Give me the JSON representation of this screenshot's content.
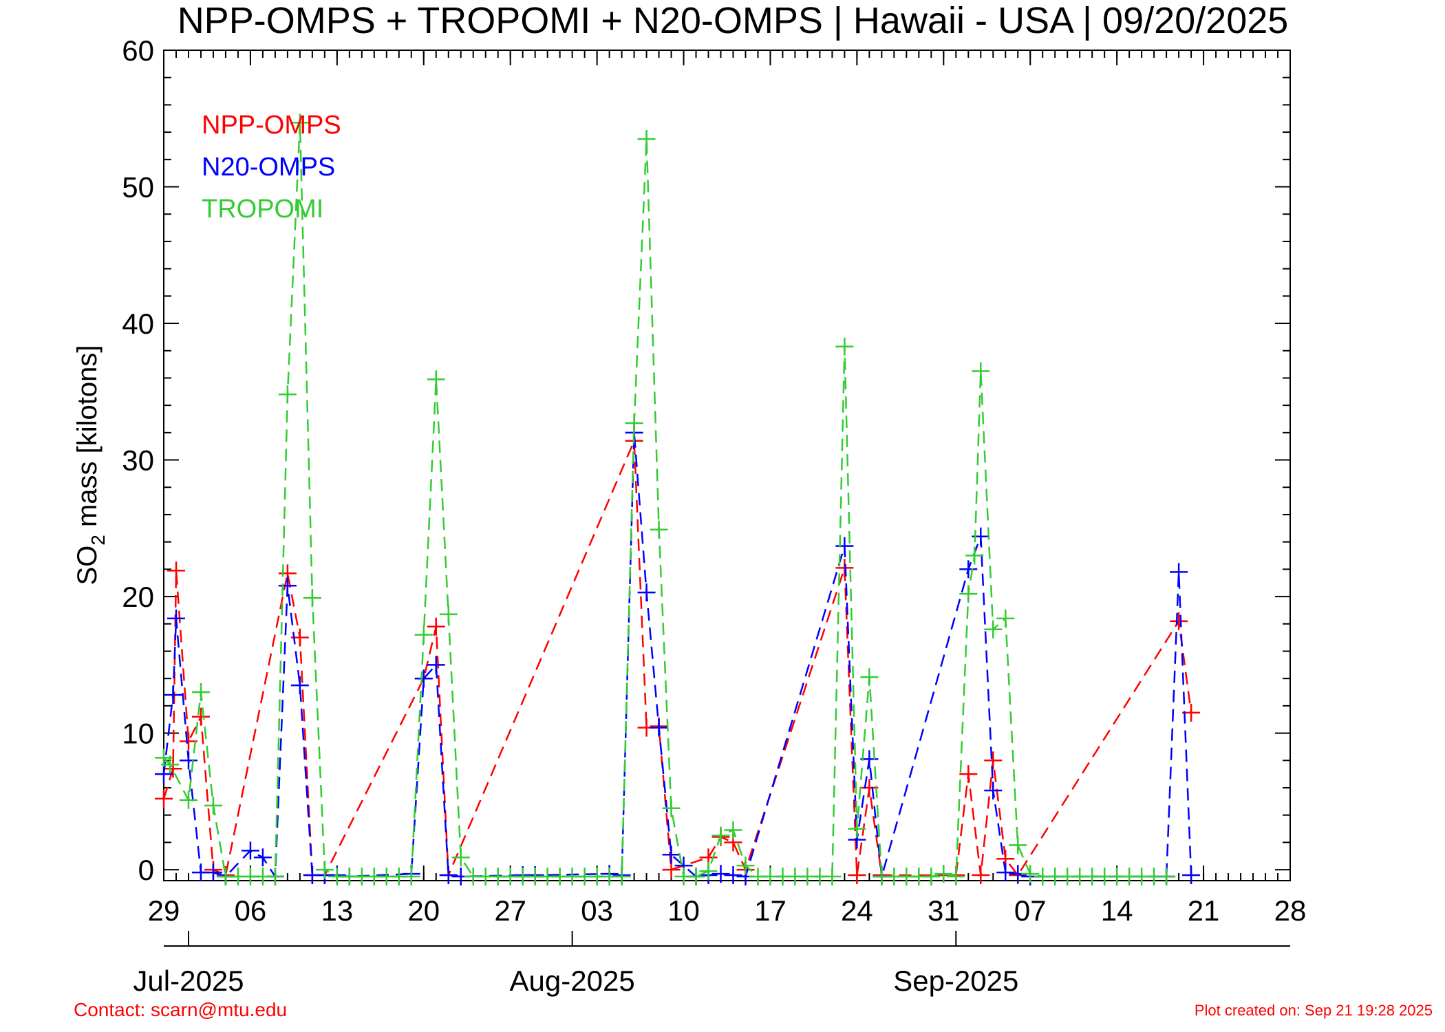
{
  "footer": {
    "contact": "Contact: scarn@mtu.edu",
    "created": "Plot created on: Sep 21 19:28 2025"
  },
  "chart_data": {
    "type": "line",
    "title": "NPP-OMPS + TROPOMI + N20-OMPS | Hawaii - USA | 09/20/2025",
    "ylabel_main": "SO",
    "ylabel_sub": "2",
    "ylabel_rest": " mass [kilotons]",
    "ylim": [
      -0.8,
      60
    ],
    "yticks": [
      0,
      10,
      20,
      30,
      40,
      50,
      60
    ],
    "xlim": [
      "2025-06-29",
      "2025-09-28"
    ],
    "xticks": [
      {
        "date": "2025-06-29",
        "label": "29"
      },
      {
        "date": "2025-07-06",
        "label": "06"
      },
      {
        "date": "2025-07-13",
        "label": "13"
      },
      {
        "date": "2025-07-20",
        "label": "20"
      },
      {
        "date": "2025-07-27",
        "label": "27"
      },
      {
        "date": "2025-08-03",
        "label": "03"
      },
      {
        "date": "2025-08-10",
        "label": "10"
      },
      {
        "date": "2025-08-17",
        "label": "17"
      },
      {
        "date": "2025-08-24",
        "label": "24"
      },
      {
        "date": "2025-08-31",
        "label": "31"
      },
      {
        "date": "2025-09-07",
        "label": "07"
      },
      {
        "date": "2025-09-14",
        "label": "14"
      },
      {
        "date": "2025-09-21",
        "label": "21"
      },
      {
        "date": "2025-09-28",
        "label": "28"
      }
    ],
    "month_ticks": [
      {
        "date": "2025-07-01",
        "label": "Jul-2025"
      },
      {
        "date": "2025-08-01",
        "label": "Aug-2025"
      },
      {
        "date": "2025-09-01",
        "label": "Sep-2025"
      }
    ],
    "legend_placement": "top-left",
    "series": [
      {
        "name": "NPP-OMPS",
        "color": "#ff0000",
        "points": [
          [
            "2025-06-29",
            5.2
          ],
          [
            "2025-06-29T18:00",
            7.4
          ],
          [
            "2025-06-30",
            21.9
          ],
          [
            "2025-07-01",
            9.4
          ],
          [
            "2025-07-02",
            11.2
          ],
          [
            "2025-07-03",
            0
          ],
          [
            "2025-07-04",
            -0.4
          ],
          [
            "2025-07-09",
            21.7
          ],
          [
            "2025-07-10",
            17.0
          ],
          [
            "2025-07-11",
            -0.4
          ],
          [
            "2025-07-12",
            -0.4
          ],
          [
            "2025-07-20",
            14.0
          ],
          [
            "2025-07-21",
            17.8
          ],
          [
            "2025-07-22",
            -0.4
          ],
          [
            "2025-08-06",
            31.4
          ],
          [
            "2025-08-07",
            10.4
          ],
          [
            "2025-08-08",
            10.5
          ],
          [
            "2025-08-09",
            0
          ],
          [
            "2025-08-12",
            0.9
          ],
          [
            "2025-08-13",
            2.4
          ],
          [
            "2025-08-14",
            2.0
          ],
          [
            "2025-08-15",
            0
          ],
          [
            "2025-08-23",
            22.1
          ],
          [
            "2025-08-24",
            -0.4
          ],
          [
            "2025-08-25",
            6.0
          ],
          [
            "2025-08-26",
            -0.4
          ],
          [
            "2025-09-01",
            -0.4
          ],
          [
            "2025-09-02",
            7.0
          ],
          [
            "2025-09-03",
            -0.4
          ],
          [
            "2025-09-04",
            8.0
          ],
          [
            "2025-09-05",
            0.8
          ],
          [
            "2025-09-06",
            -0.4
          ],
          [
            "2025-09-19",
            18.2
          ],
          [
            "2025-09-20",
            11.5
          ]
        ]
      },
      {
        "name": "N20-OMPS",
        "color": "#0000ff",
        "points": [
          [
            "2025-06-29",
            7.0
          ],
          [
            "2025-06-29T18:00",
            12.8
          ],
          [
            "2025-06-30",
            18.4
          ],
          [
            "2025-07-01",
            8.0
          ],
          [
            "2025-07-02",
            -0.2
          ],
          [
            "2025-07-03",
            -0.2
          ],
          [
            "2025-07-04",
            -0.5
          ],
          [
            "2025-07-06",
            1.4
          ],
          [
            "2025-07-07",
            0.9
          ],
          [
            "2025-07-08",
            -0.5
          ],
          [
            "2025-07-09",
            20.8
          ],
          [
            "2025-07-10",
            13.5
          ],
          [
            "2025-07-11",
            -0.4
          ],
          [
            "2025-07-12",
            -0.4
          ],
          [
            "2025-07-13",
            -0.4
          ],
          [
            "2025-07-14",
            -0.5
          ],
          [
            "2025-07-19",
            -0.3
          ],
          [
            "2025-07-20",
            14.0
          ],
          [
            "2025-07-21",
            15.0
          ],
          [
            "2025-07-22",
            -0.4
          ],
          [
            "2025-07-23",
            -0.5
          ],
          [
            "2025-07-28",
            -0.4
          ],
          [
            "2025-07-29",
            -0.4
          ],
          [
            "2025-08-04",
            -0.3
          ],
          [
            "2025-08-05",
            -0.4
          ],
          [
            "2025-08-06",
            32.0
          ],
          [
            "2025-08-07",
            20.3
          ],
          [
            "2025-08-08",
            10.4
          ],
          [
            "2025-08-09",
            1.1
          ],
          [
            "2025-08-10",
            0.3
          ],
          [
            "2025-08-11",
            -0.5
          ],
          [
            "2025-08-12",
            -0.4
          ],
          [
            "2025-08-13",
            -0.3
          ],
          [
            "2025-08-14",
            -0.4
          ],
          [
            "2025-08-15",
            -0.5
          ],
          [
            "2025-08-23",
            23.7
          ],
          [
            "2025-08-24",
            2.2
          ],
          [
            "2025-08-25",
            8.1
          ],
          [
            "2025-08-26",
            -0.5
          ],
          [
            "2025-09-02",
            22.0
          ],
          [
            "2025-09-03",
            24.4
          ],
          [
            "2025-09-04",
            5.8
          ],
          [
            "2025-09-05",
            -0.2
          ],
          [
            "2025-09-06",
            -0.3
          ],
          [
            "2025-09-07",
            -0.5
          ],
          [
            "2025-09-18",
            -0.5
          ],
          [
            "2025-09-19",
            21.8
          ],
          [
            "2025-09-20",
            -0.4
          ]
        ]
      },
      {
        "name": "TROPOMI",
        "color": "#33cc33",
        "points": [
          [
            "2025-06-29",
            8.2
          ],
          [
            "2025-06-29T12:00",
            7.7
          ],
          [
            "2025-07-01",
            5.1
          ],
          [
            "2025-07-02",
            13.0
          ],
          [
            "2025-07-03",
            4.7
          ],
          [
            "2025-07-04",
            -0.5
          ],
          [
            "2025-07-05",
            -0.5
          ],
          [
            "2025-07-06",
            -0.5
          ],
          [
            "2025-07-07",
            -0.5
          ],
          [
            "2025-07-08",
            -0.5
          ],
          [
            "2025-07-09",
            34.8
          ],
          [
            "2025-07-10",
            54.7
          ],
          [
            "2025-07-11",
            19.9
          ],
          [
            "2025-07-12",
            0
          ],
          [
            "2025-07-13",
            -0.5
          ],
          [
            "2025-07-14",
            -0.5
          ],
          [
            "2025-07-15",
            -0.5
          ],
          [
            "2025-07-16",
            -0.5
          ],
          [
            "2025-07-17",
            -0.5
          ],
          [
            "2025-07-18",
            -0.5
          ],
          [
            "2025-07-19",
            -0.5
          ],
          [
            "2025-07-20",
            17.2
          ],
          [
            "2025-07-21",
            35.9
          ],
          [
            "2025-07-22",
            18.7
          ],
          [
            "2025-07-23",
            0.9
          ],
          [
            "2025-07-24",
            -0.5
          ],
          [
            "2025-07-25",
            -0.5
          ],
          [
            "2025-07-26",
            -0.5
          ],
          [
            "2025-07-27",
            -0.5
          ],
          [
            "2025-07-28",
            -0.5
          ],
          [
            "2025-07-29",
            -0.5
          ],
          [
            "2025-07-30",
            -0.5
          ],
          [
            "2025-07-31",
            -0.5
          ],
          [
            "2025-08-01",
            -0.5
          ],
          [
            "2025-08-02",
            -0.5
          ],
          [
            "2025-08-03",
            -0.5
          ],
          [
            "2025-08-04",
            -0.5
          ],
          [
            "2025-08-05",
            -0.5
          ],
          [
            "2025-08-06",
            32.7
          ],
          [
            "2025-08-07",
            53.5
          ],
          [
            "2025-08-08",
            24.9
          ],
          [
            "2025-08-09",
            4.5
          ],
          [
            "2025-08-10",
            -0.5
          ],
          [
            "2025-08-11",
            -0.5
          ],
          [
            "2025-08-12",
            -0.1
          ],
          [
            "2025-08-13",
            2.5
          ],
          [
            "2025-08-14",
            2.9
          ],
          [
            "2025-08-15",
            0.3
          ],
          [
            "2025-08-16",
            -0.5
          ],
          [
            "2025-08-17",
            -0.5
          ],
          [
            "2025-08-18",
            -0.5
          ],
          [
            "2025-08-19",
            -0.5
          ],
          [
            "2025-08-20",
            -0.5
          ],
          [
            "2025-08-21",
            -0.5
          ],
          [
            "2025-08-22",
            -0.5
          ],
          [
            "2025-08-23",
            38.3
          ],
          [
            "2025-08-24",
            3.0
          ],
          [
            "2025-08-25",
            14.1
          ],
          [
            "2025-08-26",
            -0.5
          ],
          [
            "2025-08-27",
            -0.5
          ],
          [
            "2025-08-28",
            -0.5
          ],
          [
            "2025-08-29",
            -0.5
          ],
          [
            "2025-08-30",
            -0.5
          ],
          [
            "2025-08-31",
            -0.3
          ],
          [
            "2025-09-01",
            -0.5
          ],
          [
            "2025-09-02",
            20.2
          ],
          [
            "2025-09-02T12:00",
            23.0
          ],
          [
            "2025-09-03",
            36.5
          ],
          [
            "2025-09-04",
            17.6
          ],
          [
            "2025-09-05",
            18.4
          ],
          [
            "2025-09-06",
            1.8
          ],
          [
            "2025-09-07",
            -0.3
          ],
          [
            "2025-09-08",
            -0.5
          ],
          [
            "2025-09-09",
            -0.5
          ],
          [
            "2025-09-10",
            -0.5
          ],
          [
            "2025-09-11",
            -0.5
          ],
          [
            "2025-09-12",
            -0.5
          ],
          [
            "2025-09-13",
            -0.5
          ],
          [
            "2025-09-14",
            -0.5
          ],
          [
            "2025-09-15",
            -0.5
          ],
          [
            "2025-09-16",
            -0.5
          ],
          [
            "2025-09-17",
            -0.5
          ],
          [
            "2025-09-18",
            -0.5
          ]
        ]
      }
    ]
  }
}
